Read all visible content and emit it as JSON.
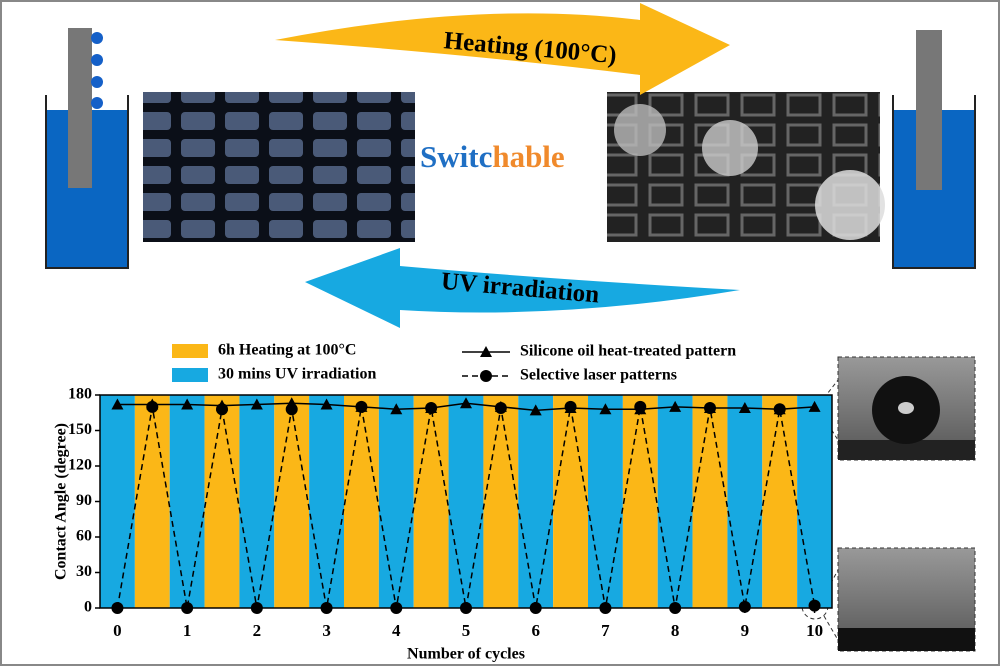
{
  "diagram": {
    "top_arrow": "Heating (100°C)",
    "center_word": [
      "Switc",
      "hable"
    ],
    "bottom_arrow": "UV irradiation"
  },
  "chart_data": {
    "type": "line",
    "x_label": "Number of cycles",
    "y_label": "Contact Angle (degree)",
    "xlim": [
      -0.25,
      10.25
    ],
    "xticks": [
      0,
      1,
      2,
      3,
      4,
      5,
      6,
      7,
      8,
      9,
      10
    ],
    "ylim": [
      0,
      180
    ],
    "yticks": [
      0,
      30,
      60,
      90,
      120,
      150,
      180
    ],
    "bands": [
      {
        "name": "6h Heating at 100°C",
        "color": "#fbb717"
      },
      {
        "name": "30 mins UV irradiation",
        "color": "#17a9e1"
      }
    ],
    "x": [
      0,
      0.5,
      1,
      1.5,
      2,
      2.5,
      3,
      3.5,
      4,
      4.5,
      5,
      5.5,
      6,
      6.5,
      7,
      7.5,
      8,
      8.5,
      9,
      9.5,
      10
    ],
    "series": [
      {
        "name": "Silicone oil heat-treated pattern",
        "color": "#000000",
        "marker": "triangle",
        "dashed": false,
        "values": [
          172,
          172,
          172,
          171,
          172,
          173,
          172,
          170,
          168,
          169,
          173,
          170,
          167,
          169,
          168,
          168,
          170,
          169,
          169,
          168,
          170
        ]
      },
      {
        "name": "Selective laser patterns",
        "color": "#000000",
        "marker": "circle",
        "dashed": true,
        "values": [
          0,
          170,
          0,
          168,
          0,
          168,
          0,
          170,
          0,
          169,
          0,
          169,
          0,
          170,
          0,
          170,
          0,
          169,
          1,
          168,
          2
        ]
      }
    ]
  }
}
